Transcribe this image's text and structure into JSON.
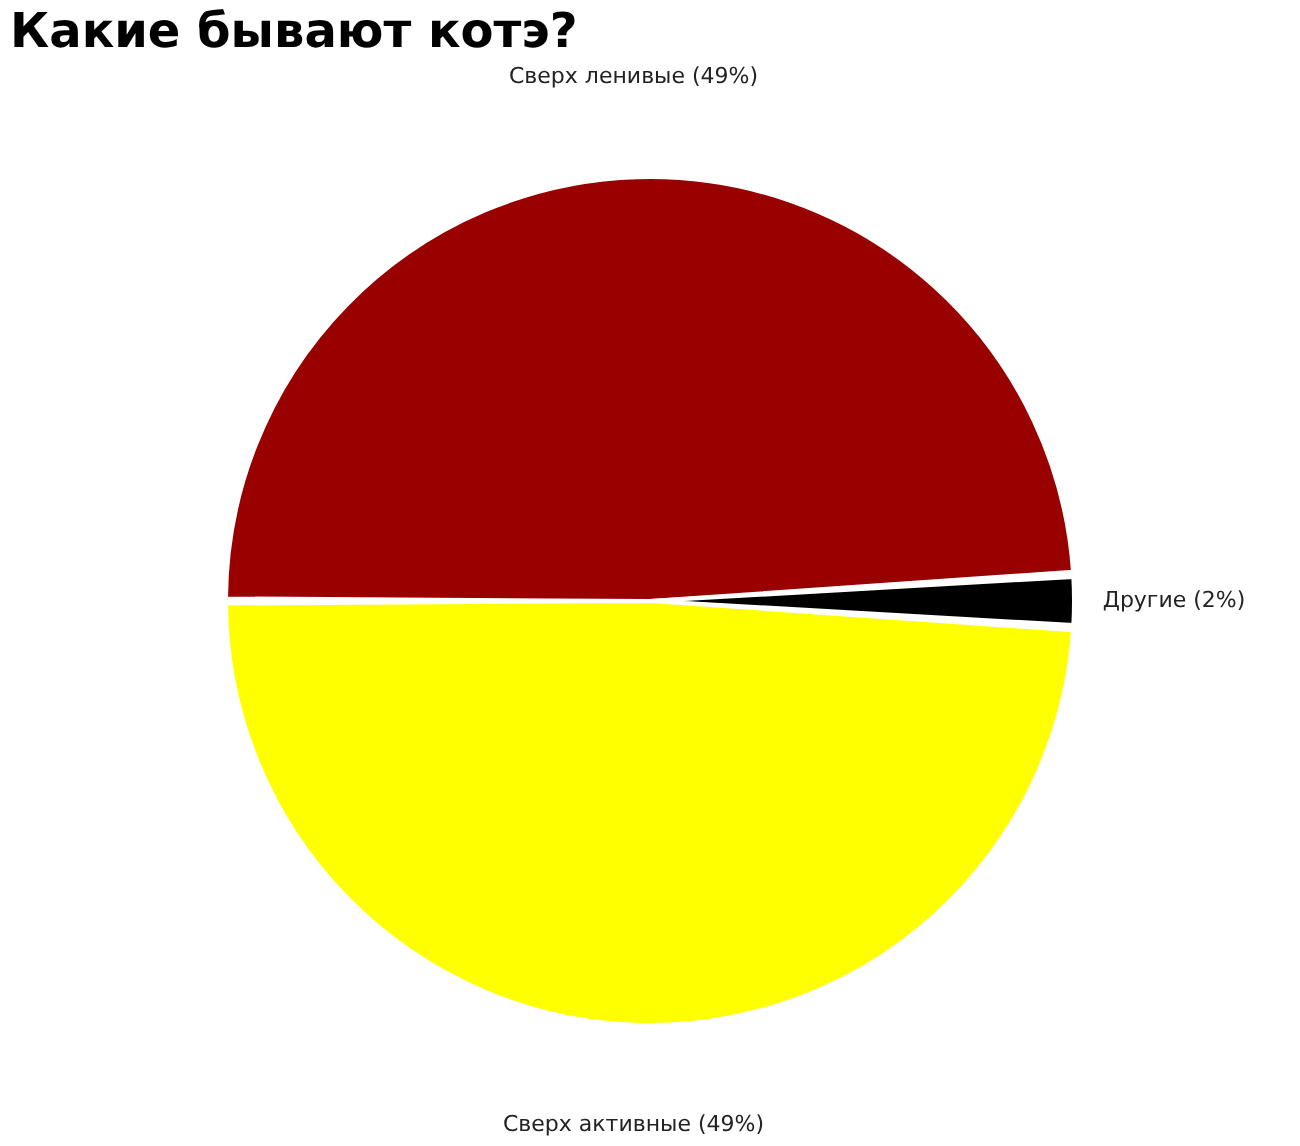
{
  "chart_data": {
    "type": "pie",
    "title": "Какие бывают котэ?",
    "categories": [
      "Сверх ленивые",
      "Другие",
      "Сверх активные"
    ],
    "values": [
      49,
      2,
      49
    ],
    "colors": [
      "#990000",
      "#000000",
      "#ffff00"
    ],
    "value_labels": [
      "(49%)",
      "(2%)",
      "(49%)"
    ],
    "legend": false
  }
}
